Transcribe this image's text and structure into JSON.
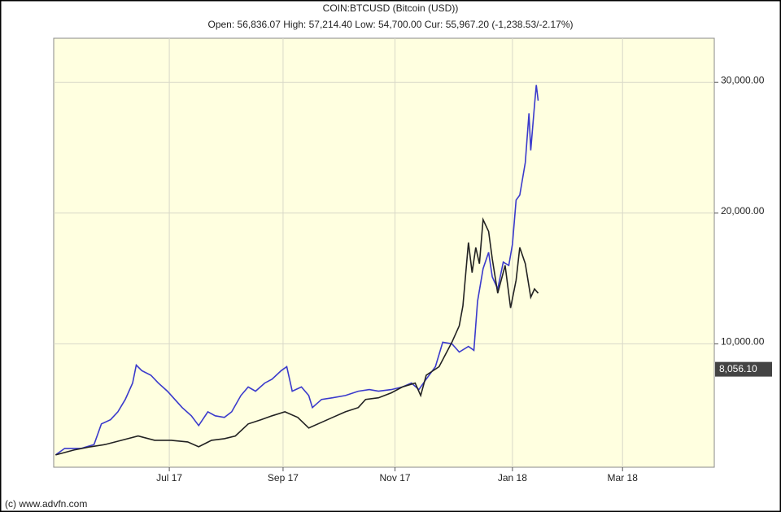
{
  "chart_data": {
    "type": "line",
    "title": "COIN:BTCUSD (Bitcoin (USD))",
    "subtitle": "Open: 56,836.07 High: 57,214.40 Low: 54,700.00 Cur: 55,967.20 (-1,238.53/-2.17%)",
    "footer": "(c) www.advfn.com",
    "xlim": [
      0,
      360
    ],
    "xticks": [
      {
        "value": 63,
        "label": "Jul 17"
      },
      {
        "value": 125,
        "label": "Sep 17"
      },
      {
        "value": 186,
        "label": "Nov 17"
      },
      {
        "value": 250,
        "label": "Jan 18"
      },
      {
        "value": 310,
        "label": "Mar 18"
      }
    ],
    "ylim": [
      562,
      33375
    ],
    "yticks": [
      {
        "value": 10000,
        "label": "10,000.00"
      },
      {
        "value": 20000,
        "label": "20,000.00"
      },
      {
        "value": 30000,
        "label": "30,000.00"
      }
    ],
    "grid": true,
    "last_value": {
      "value": 8056.1,
      "label": "8,056.10"
    },
    "series": [
      {
        "color": "#3a3acc",
        "x": [
          1,
          6,
          15,
          22,
          26,
          31,
          35,
          39,
          43,
          45,
          48,
          53,
          57,
          62,
          66,
          70,
          75,
          79,
          84,
          88,
          93,
          97,
          102,
          106,
          110,
          115,
          119,
          124,
          127,
          130,
          135,
          139,
          141,
          146,
          152,
          159,
          166,
          172,
          177,
          184,
          190,
          195,
          199,
          203,
          208,
          212,
          217,
          221,
          226,
          229,
          231,
          234,
          237,
          239,
          242,
          245,
          248,
          250,
          252,
          254,
          257,
          259,
          260,
          262,
          263,
          264
        ],
        "values": [
          1500,
          2000,
          2000,
          2300,
          3875,
          4200,
          4800,
          5750,
          7000,
          8375,
          7950,
          7600,
          7000,
          6375,
          5750,
          5125,
          4500,
          3750,
          4800,
          4500,
          4375,
          4800,
          6050,
          6700,
          6375,
          7000,
          7300,
          7950,
          8250,
          6375,
          6700,
          6050,
          5125,
          5750,
          5875,
          6050,
          6375,
          6500,
          6375,
          6500,
          6700,
          7000,
          6500,
          7300,
          8250,
          10125,
          10000,
          9375,
          9800,
          9500,
          13250,
          15750,
          17000,
          15125,
          14200,
          16250,
          16000,
          17625,
          21000,
          21375,
          23875,
          27625,
          24800,
          28250,
          29800,
          28600
        ]
      },
      {
        "color": "#222222",
        "x": [
          1,
          11,
          20,
          28,
          37,
          46,
          55,
          64,
          73,
          79,
          86,
          93,
          99,
          106,
          113,
          119,
          126,
          133,
          139,
          146,
          152,
          159,
          166,
          170,
          177,
          184,
          190,
          197,
          200,
          203,
          210,
          217,
          221,
          223,
          226,
          228,
          230,
          232,
          234,
          237,
          239,
          242,
          246,
          249,
          252,
          254,
          257,
          260,
          262,
          264
        ],
        "values": [
          1500,
          1875,
          2125,
          2300,
          2625,
          2950,
          2625,
          2625,
          2500,
          2125,
          2625,
          2750,
          2950,
          3875,
          4200,
          4500,
          4800,
          4375,
          3560,
          4000,
          4375,
          4800,
          5125,
          5750,
          5875,
          6250,
          6700,
          7000,
          6050,
          7600,
          8250,
          10125,
          11375,
          12900,
          17750,
          15450,
          17375,
          16125,
          19500,
          18600,
          16500,
          13875,
          16000,
          12750,
          14875,
          17375,
          16125,
          13560,
          14200,
          13875
        ]
      }
    ]
  }
}
